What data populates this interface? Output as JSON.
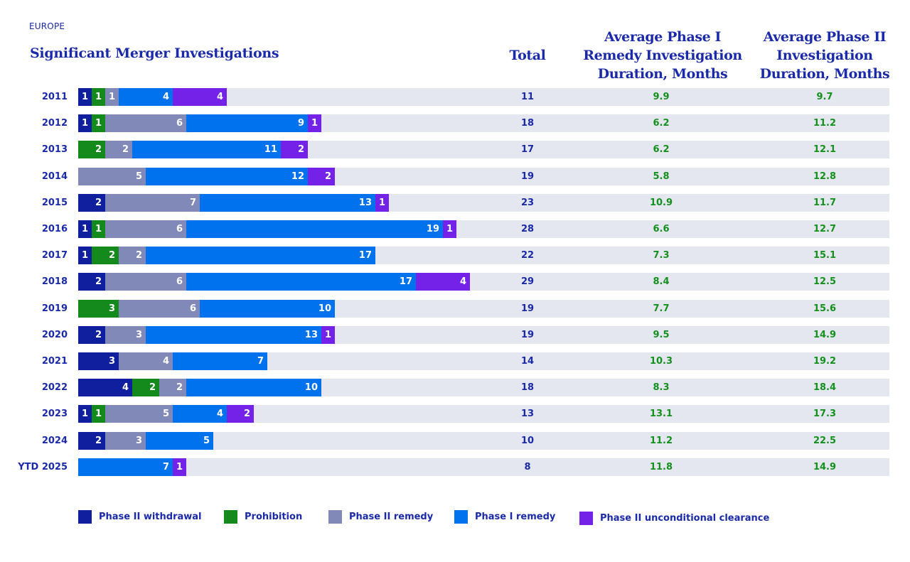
{
  "region_label": "EUROPE",
  "title": "Significant Merger Investigations",
  "columns": {
    "total": "Total",
    "phase1_duration": "Average Phase I Remedy Investigation Duration, Months",
    "phase2_duration": "Average Phase II Investigation Duration, Months"
  },
  "colors": {
    "Phase II withdrawal": "#0f1f9e",
    "Prohibition": "#138a1b",
    "Phase II remedy": "#8189b9",
    "Phase I remedy": "#0072ee",
    "Phase II unconditional clearance": "#7422e8",
    "row_background": "#e4e6f0",
    "text_primary": "#1a2aa8",
    "text_duration": "#14901c"
  },
  "chart_data": {
    "type": "bar",
    "orientation": "horizontal",
    "stacked": true,
    "title": "Significant Merger Investigations",
    "subtitle": "EUROPE",
    "categories": [
      "2011",
      "2012",
      "2013",
      "2014",
      "2015",
      "2016",
      "2017",
      "2018",
      "2019",
      "2020",
      "2021",
      "2022",
      "2023",
      "2024",
      "YTD 2025"
    ],
    "series": [
      {
        "name": "Phase II withdrawal",
        "values": [
          1,
          1,
          0,
          0,
          2,
          1,
          1,
          2,
          0,
          2,
          3,
          4,
          1,
          2,
          0
        ]
      },
      {
        "name": "Prohibition",
        "values": [
          1,
          1,
          2,
          0,
          0,
          1,
          2,
          0,
          3,
          0,
          0,
          2,
          1,
          0,
          0
        ]
      },
      {
        "name": "Phase II remedy",
        "values": [
          1,
          6,
          2,
          5,
          7,
          6,
          2,
          6,
          6,
          3,
          4,
          2,
          5,
          3,
          0
        ]
      },
      {
        "name": "Phase I remedy",
        "values": [
          4,
          9,
          11,
          12,
          13,
          19,
          17,
          17,
          10,
          13,
          7,
          10,
          4,
          5,
          7
        ]
      },
      {
        "name": "Phase II unconditional clearance",
        "values": [
          4,
          1,
          2,
          2,
          1,
          1,
          0,
          4,
          0,
          1,
          0,
          0,
          2,
          0,
          1
        ]
      }
    ],
    "totals": [
      11,
      18,
      17,
      19,
      23,
      28,
      22,
      29,
      19,
      19,
      14,
      18,
      13,
      10,
      8
    ],
    "avg_phase1_remedy_duration_months": [
      9.9,
      6.2,
      6.2,
      5.8,
      10.9,
      6.6,
      7.3,
      8.4,
      7.7,
      9.5,
      10.3,
      8.3,
      13.1,
      11.2,
      11.8
    ],
    "avg_phase2_duration_months": [
      9.7,
      11.2,
      12.1,
      12.8,
      11.7,
      12.7,
      15.1,
      12.5,
      15.6,
      14.9,
      19.2,
      18.4,
      17.3,
      22.5,
      14.9
    ],
    "xlabel": "",
    "ylabel": "",
    "xlim": [
      0,
      60
    ],
    "grid": false,
    "data_labels": true,
    "legend": {
      "position": "bottom",
      "entries": [
        "Phase II withdrawal",
        "Prohibition",
        "Phase II remedy",
        "Phase I remedy",
        "Phase II unconditional clearance"
      ]
    }
  }
}
